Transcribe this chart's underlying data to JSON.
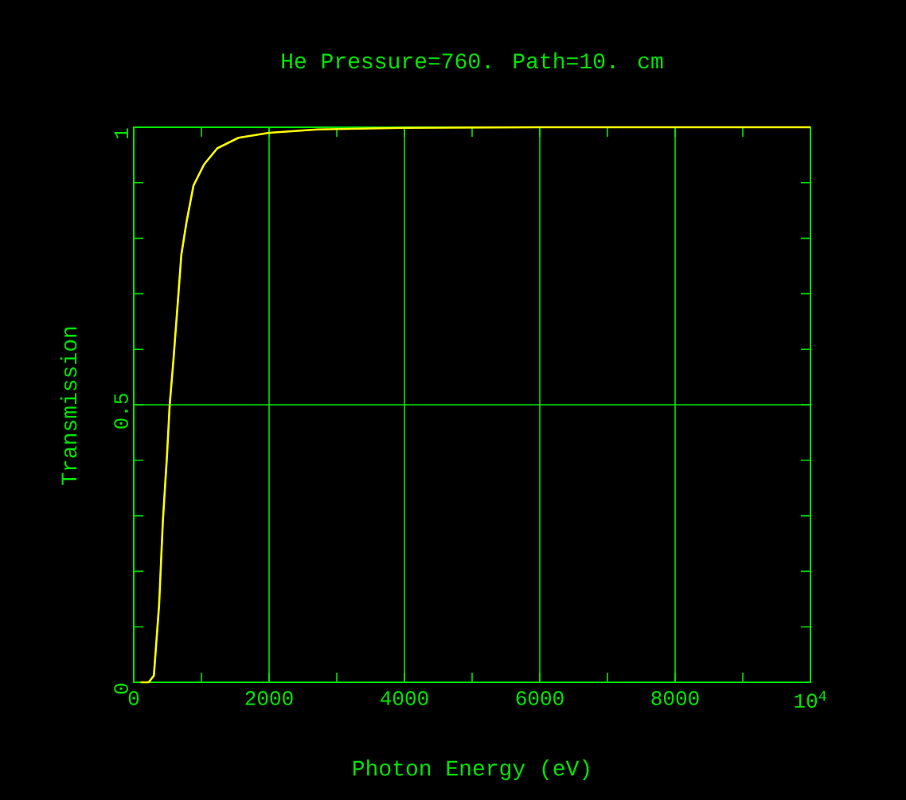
{
  "chart_data": {
    "type": "line",
    "title": "He Pressure=760. Path=10. cm",
    "xlabel": "Photon Energy (eV)",
    "ylabel": "Transmission",
    "xlim": [
      0,
      10000
    ],
    "ylim": [
      0,
      1
    ],
    "xticks": [
      0,
      {
        "value": 1000,
        "label": null
      },
      2000,
      {
        "value": 3000,
        "label": null
      },
      4000,
      {
        "value": 5000,
        "label": null
      },
      6000,
      {
        "value": 7000,
        "label": null
      },
      8000,
      {
        "value": 9000,
        "label": null
      },
      {
        "value": 10000,
        "label": "10$^{4}$"
      }
    ],
    "yticks": [
      0,
      {
        "value": 0.1,
        "label": null
      },
      {
        "value": 0.2,
        "label": null
      },
      {
        "value": 0.3,
        "label": null
      },
      {
        "value": 0.4,
        "label": null
      },
      0.5,
      {
        "value": 0.6,
        "label": null
      },
      {
        "value": 0.7,
        "label": null
      },
      {
        "value": 0.8,
        "label": null
      },
      {
        "value": 0.9,
        "label": null
      },
      1
    ],
    "grid": true,
    "marker": "none",
    "line_style": "solid",
    "series": [
      {
        "color": "#ffff00",
        "x": [
          100,
          220,
          297,
          375,
          430,
          492,
          531,
          586,
          648,
          703,
          781,
          883,
          1039,
          1234,
          1547,
          2000,
          2719,
          4000,
          6000,
          8000,
          10000
        ],
        "values": [
          0,
          0,
          0.012,
          0.14,
          0.29,
          0.41,
          0.5,
          0.58,
          0.68,
          0.77,
          0.83,
          0.895,
          0.933,
          0.962,
          0.981,
          0.99,
          0.996,
          0.999,
          1,
          1,
          1
        ]
      }
    ]
  }
}
